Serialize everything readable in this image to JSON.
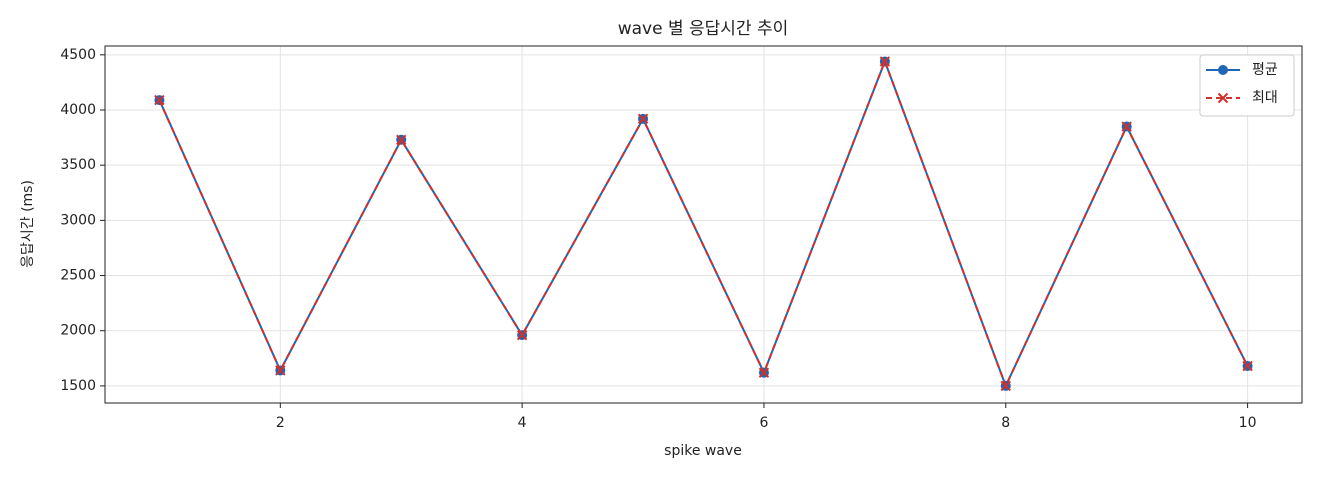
{
  "chart_data": {
    "type": "line",
    "title": "wave 별 응답시간 추이",
    "xlabel": "spike wave",
    "ylabel": "응답시간 (ms)",
    "x": [
      1,
      2,
      3,
      4,
      5,
      6,
      7,
      8,
      9,
      10
    ],
    "series": [
      {
        "name": "평균",
        "color": "#1f66b5",
        "marker": "o",
        "linestyle": "solid",
        "values": [
          4090,
          1640,
          3730,
          1960,
          3920,
          1620,
          4440,
          1500,
          3850,
          1680
        ]
      },
      {
        "name": "최대",
        "color": "#d0312d",
        "marker": "x",
        "linestyle": "dashed",
        "values": [
          4090,
          1640,
          3730,
          1960,
          3920,
          1620,
          4440,
          1500,
          3850,
          1680
        ]
      }
    ],
    "xlim": [
      0.55,
      10.45
    ],
    "ylim": [
      1345,
      4580
    ],
    "xticks": [
      2,
      4,
      6,
      8,
      10
    ],
    "yticks": [
      1500,
      2000,
      2500,
      3000,
      3500,
      4000,
      4500
    ],
    "grid": true,
    "legend": "upper right"
  }
}
